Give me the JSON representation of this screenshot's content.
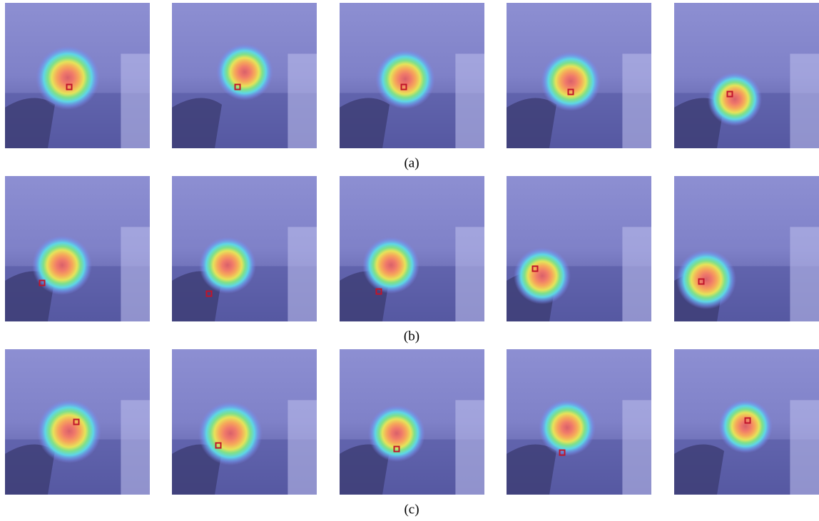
{
  "figure": {
    "rows": [
      {
        "label": "(a)"
      },
      {
        "label": "(b)"
      },
      {
        "label": "(c)"
      }
    ]
  }
}
